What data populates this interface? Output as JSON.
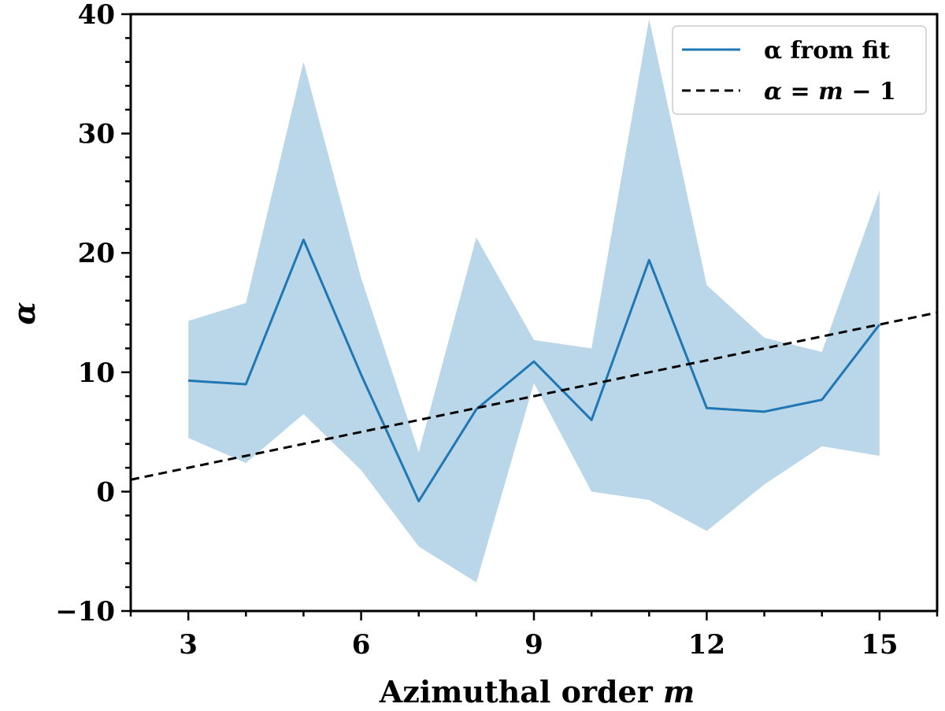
{
  "chart_data": {
    "type": "line",
    "xlabel_text": "Azimuthal order ",
    "xlabel_var": "m",
    "ylabel": "α",
    "xlim": [
      2,
      16
    ],
    "ylim": [
      -10,
      40
    ],
    "xticks": [
      3,
      6,
      9,
      12,
      15
    ],
    "xtick_labels": [
      "3",
      "6",
      "9",
      "12",
      "15"
    ],
    "yticks": [
      -10,
      0,
      10,
      20,
      30,
      40
    ],
    "ytick_labels": [
      "−10",
      "0",
      "10",
      "20",
      "30",
      "40"
    ],
    "x_minor_step": 1,
    "y_minor_step": 2,
    "grid": false,
    "legend_position": "top-right",
    "series": [
      {
        "name": "α from fit",
        "style": "solid",
        "color": "#1f77b4",
        "x": [
          3,
          4,
          5,
          6,
          7,
          8,
          9,
          10,
          11,
          12,
          13,
          14,
          15
        ],
        "y": [
          9.3,
          9.0,
          21.1,
          9.8,
          -0.8,
          6.9,
          10.9,
          6.0,
          19.4,
          7.0,
          6.7,
          7.7,
          14.0
        ],
        "band_lower": [
          4.5,
          2.4,
          6.5,
          1.8,
          -4.6,
          -7.6,
          9.1,
          0.0,
          -0.7,
          -3.3,
          0.6,
          3.8,
          3.0
        ],
        "band_upper": [
          14.3,
          15.8,
          36.0,
          17.9,
          3.3,
          21.3,
          12.7,
          12.0,
          39.6,
          17.3,
          12.9,
          11.7,
          25.2
        ],
        "band_color": "#a6cbe3"
      },
      {
        "name": "α = m − 1",
        "name_parts": [
          "α",
          " = ",
          "m",
          " − 1"
        ],
        "style": "dashed",
        "color": "#000000",
        "x": [
          2,
          16
        ],
        "y": [
          1,
          15
        ]
      }
    ]
  }
}
